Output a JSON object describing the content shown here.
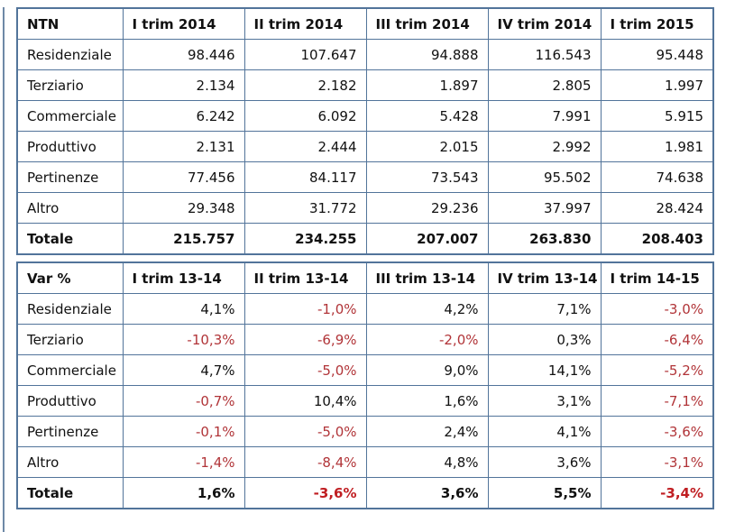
{
  "colors": {
    "table_border": "#52749a",
    "text": "#111111",
    "negative_value": "#b13438",
    "negative_value_bold": "#c01e22",
    "background": "#ffffff"
  },
  "chart_data": [
    {
      "type": "table",
      "title": "NTN",
      "columns": [
        "NTN",
        "I trim 2014",
        "II trim 2014",
        "III trim 2014",
        "IV trim 2014",
        "I trim 2015"
      ],
      "rows": [
        {
          "label": "Residenziale",
          "values": [
            "98.446",
            "107.647",
            "94.888",
            "116.543",
            "95.448"
          ],
          "bold": false
        },
        {
          "label": "Terziario",
          "values": [
            "2.134",
            "2.182",
            "1.897",
            "2.805",
            "1.997"
          ],
          "bold": false
        },
        {
          "label": "Commerciale",
          "values": [
            "6.242",
            "6.092",
            "5.428",
            "7.991",
            "5.915"
          ],
          "bold": false
        },
        {
          "label": "Produttivo",
          "values": [
            "2.131",
            "2.444",
            "2.015",
            "2.992",
            "1.981"
          ],
          "bold": false
        },
        {
          "label": "Pertinenze",
          "values": [
            "77.456",
            "84.117",
            "73.543",
            "95.502",
            "74.638"
          ],
          "bold": false
        },
        {
          "label": "Altro",
          "values": [
            "29.348",
            "31.772",
            "29.236",
            "37.997",
            "28.424"
          ],
          "bold": false
        },
        {
          "label": "Totale",
          "values": [
            "215.757",
            "234.255",
            "207.007",
            "263.830",
            "208.403"
          ],
          "bold": true
        }
      ]
    },
    {
      "type": "table",
      "title": "Var %",
      "columns": [
        "Var %",
        "I trim 13-14",
        "II trim 13-14",
        "III trim 13-14",
        "IV trim 13-14",
        "I trim 14-15"
      ],
      "rows": [
        {
          "label": "Residenziale",
          "values": [
            "4,1%",
            "-1,0%",
            "4,2%",
            "7,1%",
            "-3,0%"
          ],
          "bold": false
        },
        {
          "label": "Terziario",
          "values": [
            "-10,3%",
            "-6,9%",
            "-2,0%",
            "0,3%",
            "-6,4%"
          ],
          "bold": false
        },
        {
          "label": "Commerciale",
          "values": [
            "4,7%",
            "-5,0%",
            "9,0%",
            "14,1%",
            "-5,2%"
          ],
          "bold": false
        },
        {
          "label": "Produttivo",
          "values": [
            "-0,7%",
            "10,4%",
            "1,6%",
            "3,1%",
            "-7,1%"
          ],
          "bold": false
        },
        {
          "label": "Pertinenze",
          "values": [
            "-0,1%",
            "-5,0%",
            "2,4%",
            "4,1%",
            "-3,6%"
          ],
          "bold": false
        },
        {
          "label": "Altro",
          "values": [
            "-1,4%",
            "-8,4%",
            "4,8%",
            "3,6%",
            "-3,1%"
          ],
          "bold": false
        },
        {
          "label": "Totale",
          "values": [
            "1,6%",
            "-3,6%",
            "3,6%",
            "5,5%",
            "-3,4%"
          ],
          "bold": true
        }
      ]
    }
  ]
}
